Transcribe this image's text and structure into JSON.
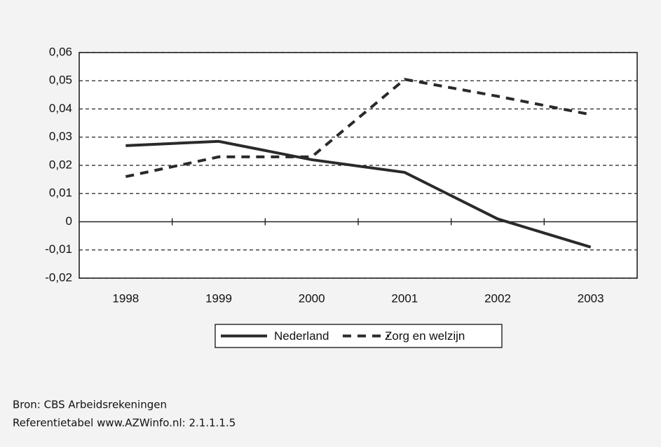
{
  "chart_data": {
    "type": "line",
    "categories": [
      "1998",
      "1999",
      "2000",
      "2001",
      "2002",
      "2003"
    ],
    "series": [
      {
        "name": "Nederland",
        "color": "#2a2a2a",
        "dash": false,
        "values": [
          0.027,
          0.0285,
          0.022,
          0.0175,
          0.001,
          -0.009
        ]
      },
      {
        "name": "Zorg en welzijn",
        "color": "#2a2a2a",
        "dash": true,
        "values": [
          0.016,
          0.023,
          0.023,
          0.0505,
          0.0445,
          0.038
        ]
      }
    ],
    "ylim": [
      -0.02,
      0.06
    ],
    "yticks": [
      {
        "value": -0.02,
        "label": "-0,02"
      },
      {
        "value": -0.01,
        "label": "-0,01"
      },
      0,
      {
        "value": 0.01,
        "label": "0,01"
      },
      {
        "value": 0.02,
        "label": "0,02"
      },
      {
        "value": 0.03,
        "label": "0,03"
      },
      {
        "value": 0.04,
        "label": "0,04"
      },
      {
        "value": 0.05,
        "label": "0,05"
      },
      {
        "value": 0.06,
        "label": "0,06"
      }
    ],
    "grid": true,
    "legend": "bottom",
    "source": [
      "Bron: CBS Arbeidsrekeningen",
      "Referentietabel www.AZWinfo.nl: 2.1.1.1.5"
    ]
  }
}
